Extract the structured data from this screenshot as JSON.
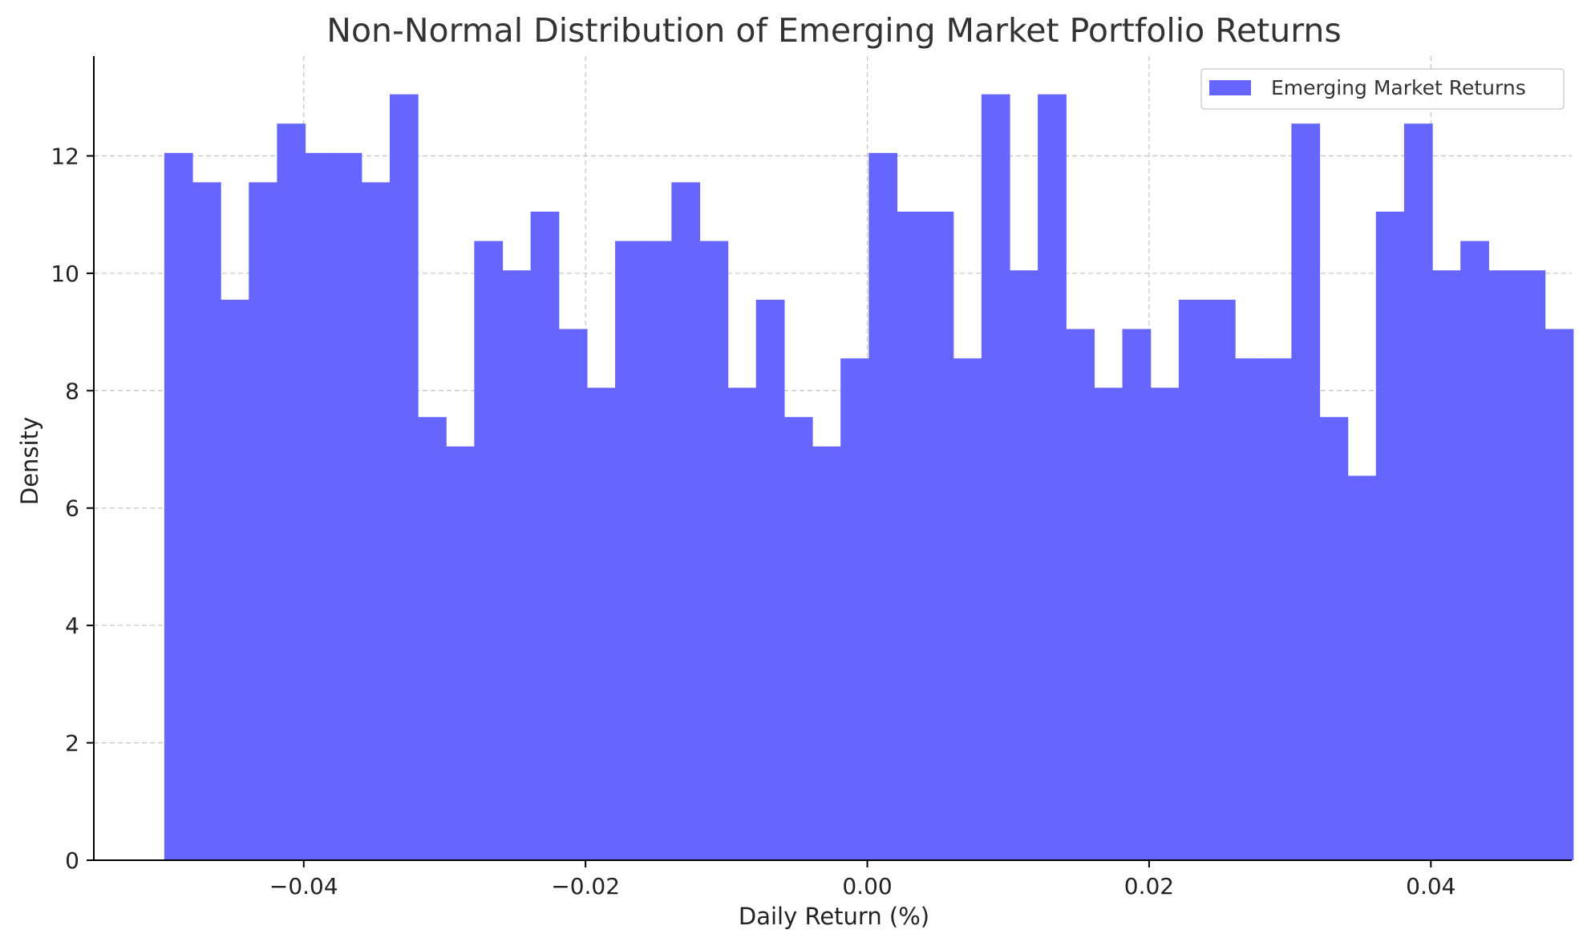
{
  "chart_data": {
    "type": "bar",
    "title": "Non-Normal Distribution of Emerging Market Portfolio Returns",
    "xlabel": "Daily Return (%)",
    "ylabel": "Density",
    "xlim": [
      -0.0549,
      0.05
    ],
    "ylim": [
      0,
      13.7
    ],
    "x_ticks": [
      -0.04,
      -0.02,
      0.0,
      0.02,
      0.04
    ],
    "x_tick_labels": [
      "−0.04",
      "−0.02",
      "0.00",
      "0.02",
      "0.04"
    ],
    "y_ticks": [
      0,
      2,
      4,
      6,
      8,
      10,
      12
    ],
    "y_tick_labels": [
      "0",
      "2",
      "4",
      "6",
      "8",
      "10",
      "12"
    ],
    "grid": true,
    "legend_position": "upper-right",
    "bin_edges": [
      -0.0499,
      -0.0479,
      -0.0459,
      -0.0439,
      -0.0419,
      -0.0399,
      -0.0379,
      -0.0359,
      -0.0339,
      -0.0319,
      -0.0299,
      -0.0279,
      -0.0259,
      -0.0239,
      -0.0219,
      -0.0199,
      -0.0179,
      -0.0159,
      -0.0139,
      -0.0119,
      -0.0099,
      -0.0079,
      -0.0059,
      -0.0039,
      -0.0019,
      0.0001,
      0.0021,
      0.0041,
      0.0061,
      0.0081,
      0.0101,
      0.0121,
      0.0141,
      0.0161,
      0.0181,
      0.0201,
      0.0221,
      0.0241,
      0.0261,
      0.0281,
      0.0301,
      0.0321,
      0.0341,
      0.0361,
      0.0381,
      0.0401,
      0.0421,
      0.0441,
      0.0461,
      0.0481,
      0.0501
    ],
    "series": [
      {
        "name": "Emerging Market Returns",
        "color": "#6666ff",
        "values": [
          12.05,
          11.55,
          9.55,
          11.55,
          12.55,
          12.05,
          12.05,
          11.55,
          13.05,
          7.55,
          7.05,
          10.55,
          10.05,
          11.05,
          9.05,
          8.05,
          10.55,
          10.55,
          11.55,
          10.55,
          8.05,
          9.55,
          7.55,
          7.05,
          8.55,
          12.05,
          11.05,
          11.05,
          8.55,
          13.05,
          10.05,
          13.05,
          9.05,
          8.05,
          9.05,
          8.05,
          9.55,
          9.55,
          8.55,
          8.55,
          12.55,
          7.55,
          6.55,
          11.05,
          12.55,
          10.05,
          10.55,
          10.05,
          10.05,
          9.05
        ]
      }
    ]
  }
}
